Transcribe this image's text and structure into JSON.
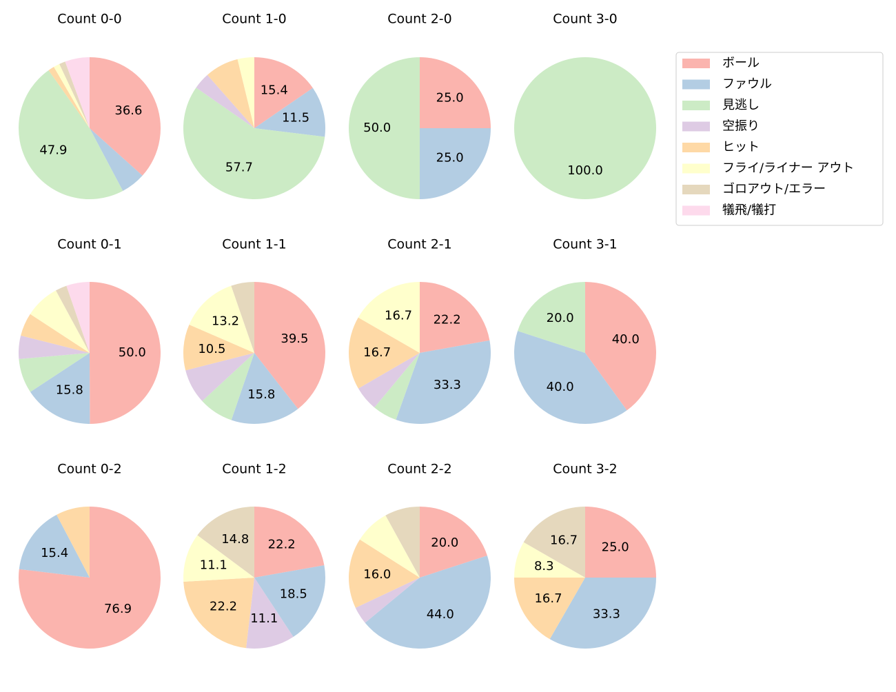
{
  "legend": {
    "entries": [
      {
        "name": "ボール",
        "color": "#fbb4ae"
      },
      {
        "name": "ファウル",
        "color": "#b3cde3"
      },
      {
        "name": "見逃し",
        "color": "#ccebc5"
      },
      {
        "name": "空振り",
        "color": "#decbe4"
      },
      {
        "name": "ヒット",
        "color": "#fed9a6"
      },
      {
        "name": "フライ/ライナー アウト",
        "color": "#ffffcc"
      },
      {
        "name": "ゴロアウト/エラー",
        "color": "#e5d8bd"
      },
      {
        "name": "犠飛/犠打",
        "color": "#fddaec"
      }
    ]
  },
  "chart_data": [
    {
      "type": "pie",
      "title": "Count 0-0",
      "categories": [
        "ボール",
        "ファウル",
        "見逃し",
        "ヒット",
        "フライ/ライナー アウト",
        "ゴロアウト/エラー",
        "犠飛/犠打"
      ],
      "values": [
        36.6,
        5.6,
        47.9,
        1.4,
        1.4,
        1.4,
        5.6
      ],
      "value_labels": [
        "36.6",
        null,
        "47.9",
        null,
        null,
        null,
        null
      ]
    },
    {
      "type": "pie",
      "title": "Count 1-0",
      "categories": [
        "ボール",
        "ファウル",
        "見逃し",
        "空振り",
        "ヒット",
        "フライ/ライナー アウト"
      ],
      "values": [
        15.4,
        11.5,
        57.7,
        3.8,
        7.7,
        3.8
      ],
      "value_labels": [
        "15.4",
        "11.5",
        "57.7",
        null,
        null,
        null
      ]
    },
    {
      "type": "pie",
      "title": "Count 2-0",
      "categories": [
        "ボール",
        "ファウル",
        "見逃し"
      ],
      "values": [
        25,
        25,
        50
      ],
      "value_labels": [
        "25.0",
        "25.0",
        "50.0"
      ]
    },
    {
      "type": "pie",
      "title": "Count 3-0",
      "categories": [
        "見逃し"
      ],
      "values": [
        100
      ],
      "value_labels": [
        "100.0"
      ]
    },
    {
      "type": "pie",
      "title": "Count 0-1",
      "categories": [
        "ボール",
        "ファウル",
        "見逃し",
        "空振り",
        "ヒット",
        "フライ/ライナー アウト",
        "ゴロアウト/エラー",
        "犠飛/犠打"
      ],
      "values": [
        50,
        15.8,
        7.9,
        5.3,
        5.3,
        7.9,
        2.6,
        5.3
      ],
      "value_labels": [
        "50.0",
        "15.8",
        null,
        null,
        null,
        null,
        null,
        null
      ]
    },
    {
      "type": "pie",
      "title": "Count 1-1",
      "categories": [
        "ボール",
        "ファウル",
        "見逃し",
        "空振り",
        "ヒット",
        "フライ/ライナー アウト",
        "ゴロアウト/エラー"
      ],
      "values": [
        39.5,
        15.8,
        7.9,
        7.9,
        10.5,
        13.2,
        5.3
      ],
      "value_labels": [
        "39.5",
        "15.8",
        null,
        null,
        "10.5",
        "13.2",
        null
      ]
    },
    {
      "type": "pie",
      "title": "Count 2-1",
      "categories": [
        "ボール",
        "ファウル",
        "見逃し",
        "空振り",
        "ヒット",
        "フライ/ライナー アウト"
      ],
      "values": [
        22.2,
        33.3,
        5.6,
        5.6,
        16.7,
        16.7
      ],
      "value_labels": [
        "22.2",
        "33.3",
        null,
        null,
        "16.7",
        "16.7"
      ]
    },
    {
      "type": "pie",
      "title": "Count 3-1",
      "categories": [
        "ボール",
        "ファウル",
        "見逃し"
      ],
      "values": [
        40,
        40,
        20
      ],
      "value_labels": [
        "40.0",
        "40.0",
        "20.0"
      ]
    },
    {
      "type": "pie",
      "title": "Count 0-2",
      "categories": [
        "ボール",
        "ファウル",
        "ヒット"
      ],
      "values": [
        76.9,
        15.4,
        7.7
      ],
      "value_labels": [
        "76.9",
        "15.4",
        null
      ]
    },
    {
      "type": "pie",
      "title": "Count 1-2",
      "categories": [
        "ボール",
        "ファウル",
        "空振り",
        "ヒット",
        "フライ/ライナー アウト",
        "ゴロアウト/エラー"
      ],
      "values": [
        22.2,
        18.5,
        11.1,
        22.2,
        11.1,
        14.8
      ],
      "value_labels": [
        "22.2",
        "18.5",
        "11.1",
        "22.2",
        "11.1",
        "14.8"
      ]
    },
    {
      "type": "pie",
      "title": "Count 2-2",
      "categories": [
        "ボール",
        "ファウル",
        "空振り",
        "ヒット",
        "フライ/ライナー アウト",
        "ゴロアウト/エラー"
      ],
      "values": [
        20,
        44,
        4,
        16,
        8,
        8
      ],
      "value_labels": [
        "20.0",
        "44.0",
        null,
        "16.0",
        null,
        null
      ]
    },
    {
      "type": "pie",
      "title": "Count 3-2",
      "categories": [
        "ボール",
        "ファウル",
        "ヒット",
        "フライ/ライナー アウト",
        "ゴロアウト/エラー"
      ],
      "values": [
        25,
        33.3,
        16.7,
        8.3,
        16.7
      ],
      "value_labels": [
        "25.0",
        "33.3",
        "16.7",
        "8.3",
        "16.7"
      ]
    }
  ]
}
